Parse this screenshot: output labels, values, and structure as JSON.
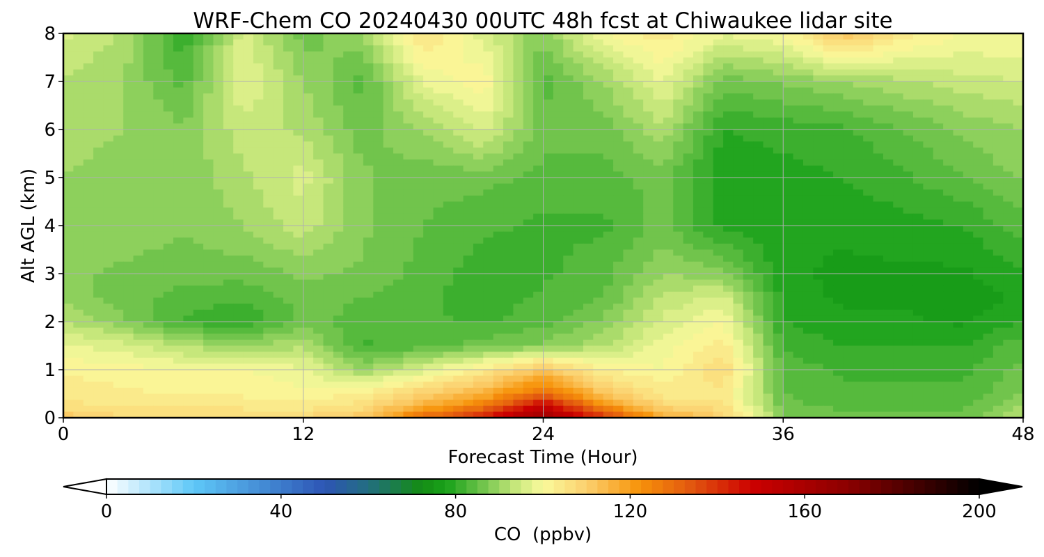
{
  "chart_data": {
    "type": "heatmap",
    "subtype": "filled-contour",
    "title": "WRF-Chem CO  20240430 00UTC 48h fcst at Chiwaukee lidar site",
    "xlabel": "Forecast Time (Hour)",
    "ylabel": "Alt AGL (km)",
    "xlim": [
      0,
      48
    ],
    "ylim": [
      0,
      8
    ],
    "xticks": [
      0,
      12,
      24,
      36,
      48
    ],
    "yticks": [
      0,
      1,
      2,
      3,
      4,
      5,
      6,
      7,
      8
    ],
    "grid": true,
    "x": [
      0,
      3,
      6,
      9,
      12,
      15,
      18,
      21,
      24,
      27,
      30,
      33,
      36,
      39,
      42,
      45,
      48
    ],
    "y": [
      0,
      0.25,
      0.5,
      1,
      1.5,
      2,
      2.5,
      3,
      4,
      5,
      6,
      7,
      8
    ],
    "z": [
      [
        112,
        108,
        108,
        108,
        108,
        112,
        130,
        145,
        165,
        140,
        118,
        110,
        88,
        86,
        86,
        86,
        94
      ],
      [
        106,
        104,
        104,
        104,
        103,
        106,
        116,
        126,
        150,
        122,
        108,
        106,
        86,
        84,
        84,
        84,
        90
      ],
      [
        104,
        103,
        102,
        102,
        101,
        103,
        110,
        116,
        130,
        112,
        104,
        104,
        85,
        83,
        83,
        83,
        88
      ],
      [
        102,
        101,
        100,
        100,
        98,
        90,
        96,
        104,
        112,
        102,
        100,
        108,
        84,
        82,
        82,
        82,
        86
      ],
      [
        98,
        96,
        92,
        90,
        92,
        82,
        84,
        86,
        88,
        92,
        99,
        104,
        82,
        80,
        80,
        80,
        84
      ],
      [
        93,
        88,
        82,
        80,
        86,
        84,
        83,
        82,
        84,
        88,
        96,
        100,
        80,
        78,
        78,
        77,
        80
      ],
      [
        89,
        86,
        84,
        83,
        86,
        85,
        83,
        81,
        83,
        85,
        93,
        96,
        79,
        77,
        77,
        76,
        78
      ],
      [
        88,
        87,
        86,
        86,
        88,
        87,
        84,
        81,
        82,
        84,
        90,
        88,
        78,
        77,
        77,
        77,
        80
      ],
      [
        90,
        89,
        88,
        90,
        94,
        88,
        85,
        83,
        82,
        82,
        86,
        79,
        78,
        78,
        79,
        80,
        84
      ],
      [
        90,
        89,
        88,
        92,
        96,
        88,
        86,
        86,
        84,
        84,
        86,
        78,
        79,
        80,
        82,
        85,
        88
      ],
      [
        91,
        90,
        88,
        94,
        92,
        86,
        90,
        96,
        86,
        86,
        92,
        80,
        81,
        82,
        85,
        88,
        90
      ],
      [
        92,
        90,
        84,
        98,
        90,
        84,
        98,
        102,
        84,
        90,
        98,
        86,
        88,
        90,
        92,
        94,
        95
      ],
      [
        96,
        92,
        80,
        96,
        86,
        90,
        106,
        96,
        88,
        100,
        104,
        98,
        100,
        112,
        104,
        100,
        100
      ]
    ],
    "colorbar": {
      "label": "CO  (ppbv)",
      "min": 0,
      "max": 200,
      "ticks": [
        0,
        40,
        80,
        120,
        160,
        200
      ],
      "extend": "both",
      "colormap": [
        {
          "v": 0,
          "color": "#ffffff"
        },
        {
          "v": 20,
          "color": "#5ec8f8"
        },
        {
          "v": 50,
          "color": "#2d55b5"
        },
        {
          "v": 60,
          "color": "#236e80"
        },
        {
          "v": 72,
          "color": "#148c14"
        },
        {
          "v": 78,
          "color": "#1aa21a"
        },
        {
          "v": 86,
          "color": "#6ec34a"
        },
        {
          "v": 94,
          "color": "#c9e87d"
        },
        {
          "v": 100,
          "color": "#fafa9c"
        },
        {
          "v": 110,
          "color": "#fbd06e"
        },
        {
          "v": 122,
          "color": "#f7930a"
        },
        {
          "v": 134,
          "color": "#e2570f"
        },
        {
          "v": 148,
          "color": "#cc0000"
        },
        {
          "v": 170,
          "color": "#8b0000"
        },
        {
          "v": 200,
          "color": "#000000"
        }
      ]
    }
  }
}
